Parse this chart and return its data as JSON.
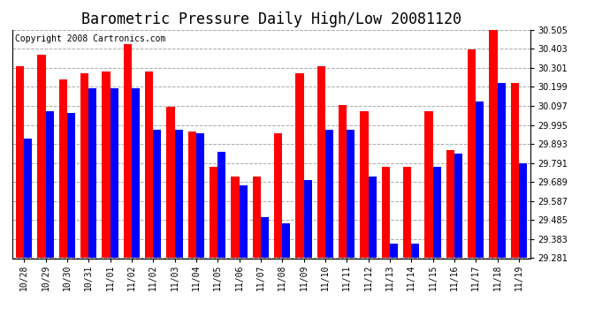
{
  "title": "Barometric Pressure Daily High/Low 20081120",
  "copyright": "Copyright 2008 Cartronics.com",
  "categories": [
    "10/28",
    "10/29",
    "10/30",
    "10/31",
    "11/01",
    "11/02",
    "11/02",
    "11/03",
    "11/04",
    "11/05",
    "11/06",
    "11/07",
    "11/08",
    "11/09",
    "11/10",
    "11/11",
    "11/12",
    "11/13",
    "11/14",
    "11/15",
    "11/16",
    "11/17",
    "11/18",
    "11/19"
  ],
  "high": [
    30.31,
    30.37,
    30.24,
    30.27,
    30.28,
    30.43,
    30.28,
    30.09,
    29.96,
    29.77,
    29.72,
    29.72,
    29.95,
    30.27,
    30.31,
    30.1,
    30.07,
    29.77,
    29.77,
    30.07,
    29.86,
    30.4,
    30.51,
    30.22
  ],
  "low": [
    29.92,
    30.07,
    30.06,
    30.19,
    30.19,
    30.19,
    29.97,
    29.97,
    29.95,
    29.85,
    29.67,
    29.5,
    29.47,
    29.7,
    29.97,
    29.97,
    29.72,
    29.36,
    29.36,
    29.77,
    29.84,
    30.12,
    30.22,
    29.79
  ],
  "high_color": "#ff0000",
  "low_color": "#0000ff",
  "background_color": "#ffffff",
  "plot_background": "#ffffff",
  "grid_color": "#aaaaaa",
  "ymin": 29.281,
  "ymax": 30.505,
  "yticks": [
    29.281,
    29.383,
    29.485,
    29.587,
    29.689,
    29.791,
    29.893,
    29.995,
    30.097,
    30.199,
    30.301,
    30.403,
    30.505
  ],
  "bar_width": 0.38,
  "title_fontsize": 12,
  "tick_fontsize": 7,
  "copyright_fontsize": 7
}
